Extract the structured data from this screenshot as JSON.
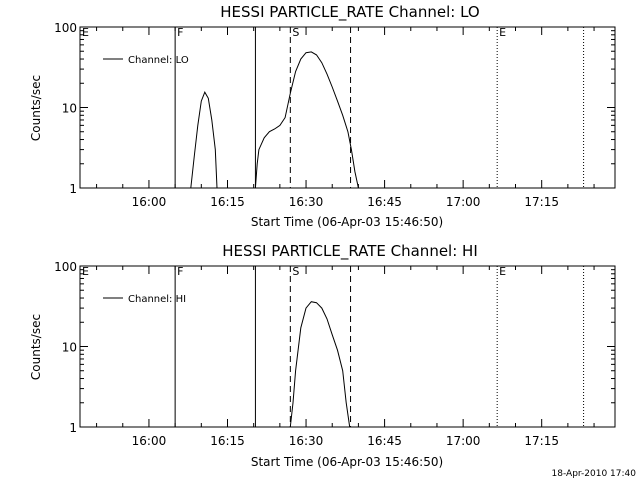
{
  "footer_timestamp": "18-Apr-2010 17:40",
  "chart_data": [
    {
      "type": "line",
      "title": "HESSI PARTICLE_RATE Channel: LO",
      "xlabel": "Start Time (06-Apr-03 15:46:50)",
      "ylabel": "Counts/sec",
      "y_scale": "log",
      "ylim": [
        1,
        100
      ],
      "xlim": [
        "15:46:50",
        "17:29:00"
      ],
      "x_ticks": [
        "16:00",
        "16:15",
        "16:30",
        "16:45",
        "17:00",
        "17:15"
      ],
      "y_ticks": [
        "1",
        "10",
        "100"
      ],
      "grid": false,
      "legend_position": "top-left",
      "series": [
        {
          "name": "Channel: LO",
          "x": [
            "16:08",
            "16:08:40",
            "16:09:20",
            "16:10",
            "16:10:40",
            "16:11:20",
            "16:12",
            "16:12:40",
            "16:13",
            "16:15:00",
            "16:20:20",
            "16:20:40",
            "16:21",
            "16:22",
            "16:23",
            "16:24",
            "16:25",
            "16:26",
            "16:27",
            "16:28",
            "16:29",
            "16:30",
            "16:31",
            "16:32",
            "16:33",
            "16:34",
            "16:35",
            "16:36",
            "16:37",
            "16:38",
            "16:38:40",
            "16:39:20",
            "16:40"
          ],
          "y": [
            1,
            2.5,
            6,
            12,
            15.5,
            13,
            7,
            3,
            1,
            1,
            1,
            2,
            3,
            4.2,
            5,
            5.4,
            6,
            7.5,
            15,
            28,
            40,
            48,
            49,
            45,
            36,
            26,
            18,
            12,
            8,
            5,
            3,
            1.6,
            1
          ]
        }
      ],
      "markers": [
        {
          "label": "E",
          "time": "15:46:50",
          "style": "none"
        },
        {
          "label": "F",
          "time": "16:05",
          "style": "solid"
        },
        {
          "label": "",
          "time": "16:20:20",
          "style": "solid"
        },
        {
          "label": "S",
          "time": "16:27",
          "style": "dashed"
        },
        {
          "label": "",
          "time": "16:38:30",
          "style": "dashed"
        },
        {
          "label": "E",
          "time": "17:06:30",
          "style": "dotted"
        },
        {
          "label": "",
          "time": "17:23",
          "style": "dotted"
        }
      ]
    },
    {
      "type": "line",
      "title": "HESSI PARTICLE_RATE Channel: HI",
      "xlabel": "Start Time (06-Apr-03 15:46:50)",
      "ylabel": "Counts/sec",
      "y_scale": "log",
      "ylim": [
        1,
        100
      ],
      "xlim": [
        "15:46:50",
        "17:29:00"
      ],
      "x_ticks": [
        "16:00",
        "16:15",
        "16:30",
        "16:45",
        "17:00",
        "17:15"
      ],
      "y_ticks": [
        "1",
        "10",
        "100"
      ],
      "grid": false,
      "legend_position": "top-left",
      "series": [
        {
          "name": "Channel: HI",
          "x": [
            "16:27",
            "16:27:30",
            "16:28",
            "16:29",
            "16:30",
            "16:31",
            "16:32",
            "16:33",
            "16:34",
            "16:35",
            "16:36",
            "16:37",
            "16:37:40",
            "16:38:20"
          ],
          "y": [
            1,
            2,
            5,
            17,
            30,
            36,
            35,
            30,
            22,
            14,
            9,
            5,
            2,
            1
          ]
        }
      ],
      "markers": [
        {
          "label": "E",
          "time": "15:46:50",
          "style": "none"
        },
        {
          "label": "F",
          "time": "16:05",
          "style": "solid"
        },
        {
          "label": "",
          "time": "16:20:20",
          "style": "solid"
        },
        {
          "label": "S",
          "time": "16:27",
          "style": "dashed"
        },
        {
          "label": "",
          "time": "16:38:30",
          "style": "dashed"
        },
        {
          "label": "E",
          "time": "17:06:30",
          "style": "dotted"
        },
        {
          "label": "",
          "time": "17:23",
          "style": "dotted"
        }
      ]
    }
  ]
}
